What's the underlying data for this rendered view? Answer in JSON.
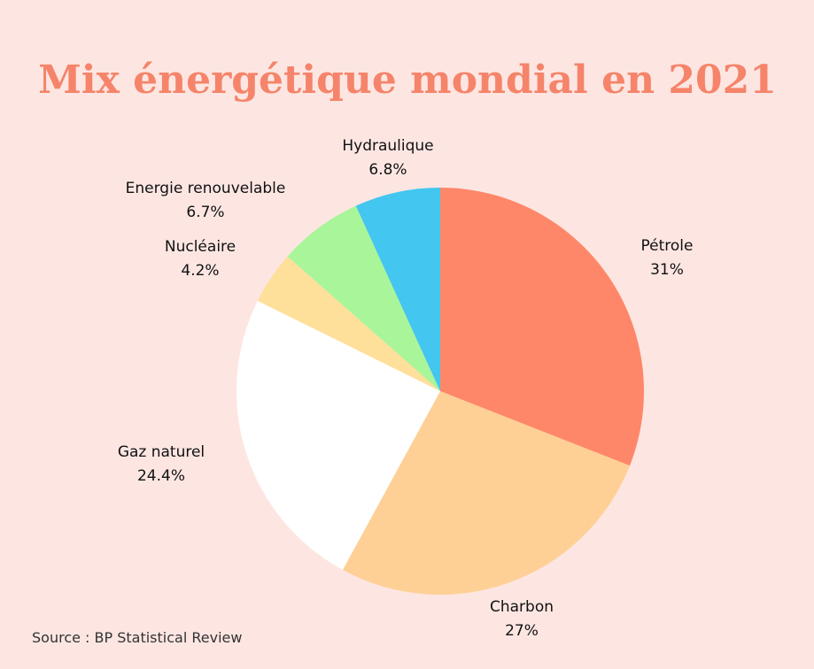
{
  "chart_data": {
    "type": "pie",
    "title": "Mix énergétique mondial en 2021",
    "slices": [
      {
        "label": "Pétrole",
        "value": 31,
        "value_label": "31%",
        "color": "#fe8769"
      },
      {
        "label": "Charbon",
        "value": 27,
        "value_label": "27%",
        "color": "#fed096"
      },
      {
        "label": "Gaz naturel",
        "value": 24.4,
        "value_label": "24.4%",
        "color": "#ffffff"
      },
      {
        "label": "Nucléaire",
        "value": 4.2,
        "value_label": "4.2%",
        "color": "#fee09a"
      },
      {
        "label": "Energie renouvelable",
        "value": 6.7,
        "value_label": "6.7%",
        "color": "#a9f59a"
      },
      {
        "label": "Hydraulique",
        "value": 6.8,
        "value_label": "6.8%",
        "color": "#43c6f0"
      }
    ],
    "start_angle": "12 o'clock",
    "direction": "clockwise",
    "source": "Source : BP Statistical Review"
  }
}
